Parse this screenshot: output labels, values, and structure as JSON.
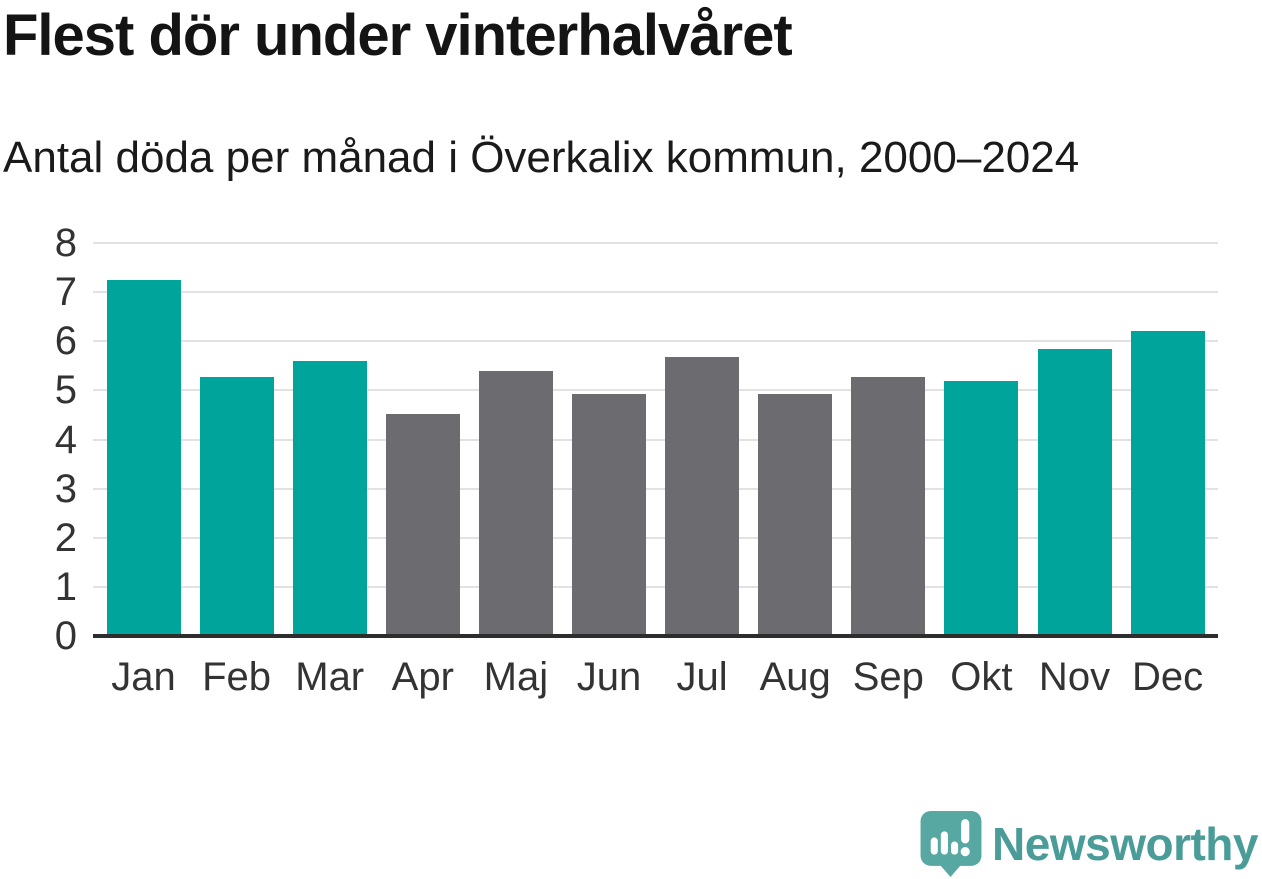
{
  "header": {
    "title": "Flest dör under vinterhalvåret",
    "subtitle": "Antal döda per månad i Överkalix kommun, 2000–2024"
  },
  "chart_data": {
    "type": "bar",
    "title": "Flest dör under vinterhalvåret",
    "subtitle": "Antal döda per månad i Överkalix kommun, 2000–2024",
    "categories": [
      "Jan",
      "Feb",
      "Mar",
      "Apr",
      "Maj",
      "Jun",
      "Jul",
      "Aug",
      "Sep",
      "Okt",
      "Nov",
      "Dec"
    ],
    "values": [
      7.24,
      5.28,
      5.6,
      4.52,
      5.4,
      4.92,
      5.68,
      4.92,
      5.28,
      5.2,
      5.84,
      6.2
    ],
    "highlighted": [
      true,
      true,
      true,
      false,
      false,
      false,
      false,
      false,
      false,
      true,
      true,
      true
    ],
    "xlabel": "",
    "ylabel": "",
    "ylim": [
      0,
      8
    ],
    "yticks": [
      0,
      1,
      2,
      3,
      4,
      5,
      6,
      7,
      8
    ],
    "grid": true,
    "legend": "none",
    "colors": {
      "highlight_bar": "#00a49b",
      "base_bar": "#6b6b70",
      "gridline": "#e2e2e2",
      "axis_line": "#2d2d2d",
      "tick_text": "#333333"
    }
  },
  "footer": {
    "brand": "Newsworthy",
    "brand_text_color": "#4a9c99",
    "logo_bubble_color": "#57a7a2"
  }
}
